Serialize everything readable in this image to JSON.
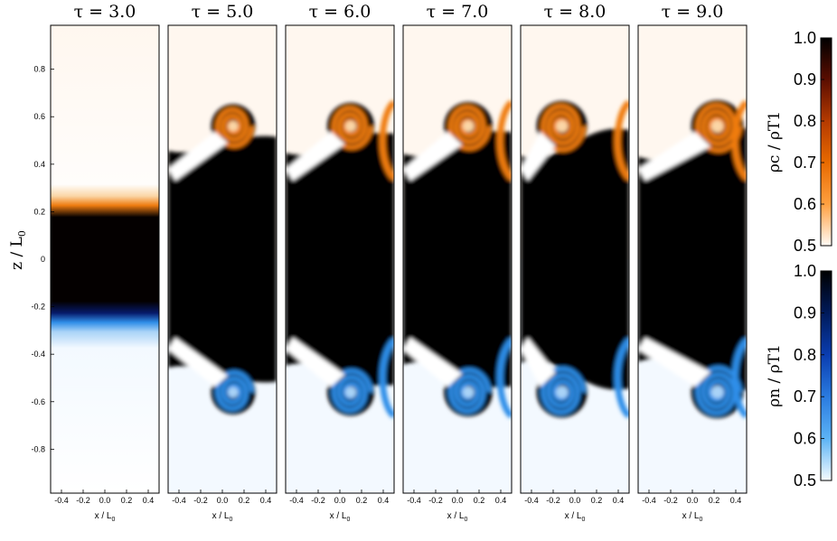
{
  "panels": [
    {
      "title": "τ = 3.0"
    },
    {
      "title": "τ = 5.0"
    },
    {
      "title": "τ = 6.0"
    },
    {
      "title": "τ = 7.0"
    },
    {
      "title": "τ = 8.0"
    },
    {
      "title": "τ = 9.0"
    }
  ],
  "axes": {
    "ylabel": "z / L",
    "ylabel_sub": "0",
    "xlabel": "x / L",
    "xlabel_sub": "0",
    "yticks": [
      "0.8",
      "0.6",
      "0.4",
      "0.2",
      "0",
      "-0.2",
      "-0.4",
      "-0.6",
      "-0.8"
    ],
    "xticks": [
      "-0.4",
      "-0.2",
      "0.0",
      "0.2",
      "0.4"
    ]
  },
  "colorbars": [
    {
      "label": "ρc / ρT1",
      "ticks": [
        "1.0",
        "0.9",
        "0.8",
        "0.7",
        "0.6",
        "0.5"
      ],
      "colors": [
        "#fffaf5",
        "#ffa040",
        "#e86a00",
        "#b53a00",
        "#5a0d00",
        "#000000"
      ]
    },
    {
      "label": "ρn / ρT1",
      "ticks": [
        "1.0",
        "0.9",
        "0.8",
        "0.7",
        "0.6",
        "0.5"
      ],
      "colors": [
        "#f5fbff",
        "#5cb3f5",
        "#2a7be0",
        "#0a3db0",
        "#001a5a",
        "#000000"
      ]
    }
  ],
  "colors": {
    "dark": "#040000",
    "orange": "#ef7c10",
    "orange_light": "#fbd6a6",
    "cream": "#fff7ef",
    "blue": "#2f8ee8",
    "blue_light": "#a9d3f7",
    "ice": "#f3f9ff",
    "navy": "#000a3a"
  }
}
